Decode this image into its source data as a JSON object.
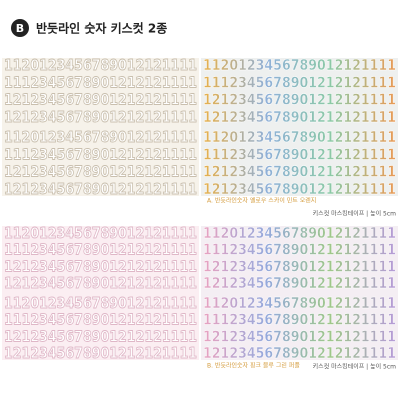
{
  "badge": "B",
  "title": "반듯라인 숫자 키스컷 2종",
  "panels": [
    {
      "rows": [
        "1120123456789012121111",
        "1112345678901212121111",
        "1212345678901212121111",
        "1212345678901212121111",
        "1120123456789012121111",
        "1112345678901212121111",
        "1212345678901212121111",
        "1212345678901212121111"
      ],
      "caption": "A. 반듯라인숫자 옐로우 스카이 민트 오렌지",
      "spec": "키스컷 마스킹테이프 | 높이 5cm"
    },
    {
      "rows": [
        "1120123456789012121111",
        "1112345678901212121111",
        "1212345678901212121111",
        "1212345678901212121111",
        "1120123456789012121111",
        "1112345678901212121111",
        "1212345678901212121111",
        "1212345678901212121111"
      ],
      "caption": "B. 반듯라인숫자 핑크 블루 그린 퍼플",
      "spec": "키스컷 마스킹테이프 | 높이 5cm"
    }
  ]
}
